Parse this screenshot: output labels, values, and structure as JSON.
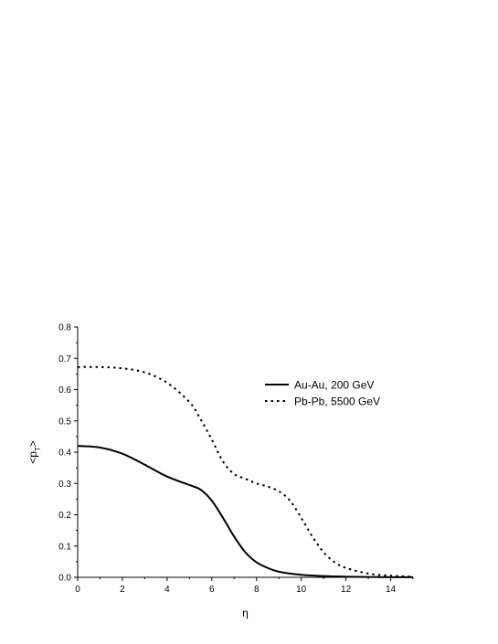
{
  "chart_data": {
    "type": "line",
    "title": "",
    "xlabel": "η",
    "ylabel": "<p_T>",
    "xlim": [
      0,
      15
    ],
    "ylim": [
      0,
      0.8
    ],
    "x_ticks": [
      "0",
      "2",
      "4",
      "6",
      "8",
      "10",
      "12",
      "14"
    ],
    "y_ticks": [
      "0.0",
      "0.1",
      "0.2",
      "0.3",
      "0.4",
      "0.5",
      "0.6",
      "0.7",
      "0.8"
    ],
    "grid": false,
    "legend_position": "top-right",
    "series": [
      {
        "name": "Au-Au, 200 GeV",
        "style": "solid",
        "color": "#000000",
        "x": [
          0,
          1,
          2,
          3,
          4,
          5,
          5.5,
          6,
          6.5,
          7,
          7.5,
          8,
          8.5,
          9,
          10,
          11,
          12,
          13,
          14,
          15
        ],
        "y": [
          0.42,
          0.415,
          0.395,
          0.36,
          0.322,
          0.295,
          0.28,
          0.245,
          0.19,
          0.13,
          0.08,
          0.048,
          0.03,
          0.018,
          0.008,
          0.004,
          0.002,
          0.001,
          0.0005,
          0.0002
        ]
      },
      {
        "name": "Pb-Pb, 5500 GeV",
        "style": "dotted",
        "color": "#000000",
        "x": [
          0,
          1,
          2,
          3,
          4,
          5,
          5.5,
          6,
          6.5,
          7,
          7.5,
          8,
          8.5,
          9,
          9.5,
          10,
          10.5,
          11,
          11.5,
          12,
          13,
          14,
          15
        ],
        "y": [
          0.672,
          0.672,
          0.668,
          0.655,
          0.622,
          0.56,
          0.505,
          0.44,
          0.37,
          0.33,
          0.315,
          0.3,
          0.29,
          0.275,
          0.245,
          0.19,
          0.13,
          0.08,
          0.048,
          0.03,
          0.012,
          0.005,
          0.002
        ]
      }
    ]
  }
}
